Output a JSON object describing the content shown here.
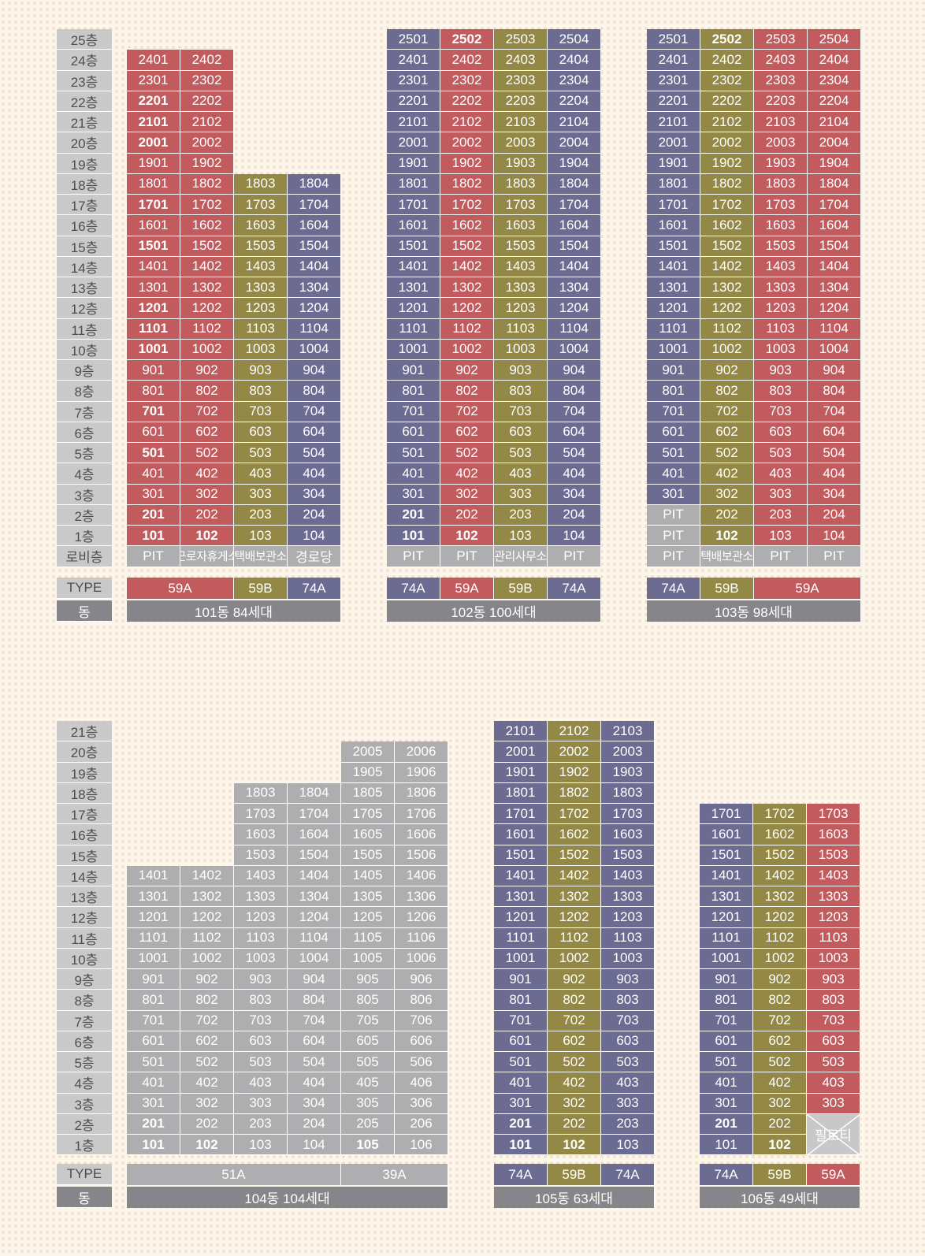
{
  "colors": {
    "red": "#c25b5e",
    "olive": "#938845",
    "blue": "#6c6c93",
    "gray": "#aeaeb1",
    "label": "#c9c9c9",
    "dark": "#86868a",
    "pilotis": "#c8c8ca"
  },
  "sectionA": {
    "floor_labels": [
      "25층",
      "24층",
      "23층",
      "22층",
      "21층",
      "20층",
      "19층",
      "18층",
      "17층",
      "16층",
      "15층",
      "14층",
      "13층",
      "12층",
      "11층",
      "10층",
      "9층",
      "8층",
      "7층",
      "6층",
      "5층",
      "4층",
      "3층",
      "2층",
      "1층",
      "로비층"
    ],
    "type_label": "TYPE",
    "dong_label": "동"
  },
  "sectionB": {
    "floor_labels": [
      "21층",
      "20층",
      "19층",
      "18층",
      "17층",
      "16층",
      "15층",
      "14층",
      "13층",
      "12층",
      "11층",
      "10층",
      "9층",
      "8층",
      "7층",
      "6층",
      "5층",
      "4층",
      "3층",
      "2층",
      "1층"
    ],
    "type_label": "TYPE",
    "dong_label": "동"
  },
  "buildings": [
    {
      "id": "101",
      "section": "A",
      "dong_label": "101동 84세대",
      "columns": [
        {
          "line": "01",
          "type": "59A",
          "color": "red",
          "top_floor": 24,
          "bold_floors": [
            1,
            2,
            5,
            7,
            10,
            11,
            12,
            15,
            17,
            20,
            21,
            22
          ]
        },
        {
          "line": "02",
          "type": "59A",
          "color": "red",
          "top_floor": 24,
          "bold_floors": [
            1
          ]
        },
        {
          "line": "03",
          "type": "59B",
          "color": "olive",
          "top_floor": 18,
          "bold_floors": []
        },
        {
          "line": "04",
          "type": "74A",
          "color": "blue",
          "top_floor": 18,
          "bold_floors": []
        }
      ],
      "lobby": [
        "PIT",
        "근로자휴게소",
        "택배보관소",
        "경로당"
      ],
      "types": [
        {
          "label": "59A",
          "span": 2,
          "color": "red"
        },
        {
          "label": "59B",
          "span": 1,
          "color": "olive"
        },
        {
          "label": "74A",
          "span": 1,
          "color": "blue"
        }
      ]
    },
    {
      "id": "102",
      "section": "A",
      "dong_label": "102동 100세대",
      "columns": [
        {
          "line": "01",
          "type": "74A",
          "color": "blue",
          "top_floor": 25,
          "bold_floors": [
            1,
            2
          ]
        },
        {
          "line": "02",
          "type": "59A",
          "color": "red",
          "top_floor": 25,
          "bold_floors": [
            1,
            25
          ]
        },
        {
          "line": "03",
          "type": "59B",
          "color": "olive",
          "top_floor": 25,
          "bold_floors": []
        },
        {
          "line": "04",
          "type": "74A",
          "color": "blue",
          "top_floor": 25,
          "bold_floors": []
        }
      ],
      "lobby": [
        "PIT",
        "PIT",
        "관리사무소",
        "PIT"
      ],
      "types": [
        {
          "label": "74A",
          "span": 1,
          "color": "blue"
        },
        {
          "label": "59A",
          "span": 1,
          "color": "red"
        },
        {
          "label": "59B",
          "span": 1,
          "color": "olive"
        },
        {
          "label": "74A",
          "span": 1,
          "color": "blue"
        }
      ]
    },
    {
      "id": "103",
      "section": "A",
      "dong_label": "103동 98세대",
      "columns": [
        {
          "line": "01",
          "type": "74A",
          "color": "blue",
          "top_floor": 25,
          "bold_floors": [],
          "pit_floors": [
            1,
            2
          ]
        },
        {
          "line": "02",
          "type": "59B",
          "color": "olive",
          "top_floor": 25,
          "bold_floors": [
            1,
            25
          ]
        },
        {
          "line": "03",
          "type": "59A",
          "color": "red",
          "top_floor": 25,
          "bold_floors": []
        },
        {
          "line": "04",
          "type": "59A",
          "color": "red",
          "top_floor": 25,
          "bold_floors": []
        }
      ],
      "pit_label": "PIT",
      "lobby": [
        "PIT",
        "택배보관소",
        "PIT",
        "PIT"
      ],
      "types": [
        {
          "label": "74A",
          "span": 1,
          "color": "blue"
        },
        {
          "label": "59B",
          "span": 1,
          "color": "olive"
        },
        {
          "label": "59A",
          "span": 2,
          "color": "red"
        }
      ]
    },
    {
      "id": "104",
      "section": "B",
      "dong_label": "104동 104세대",
      "columns": [
        {
          "line": "01",
          "type": "51A",
          "color": "gray",
          "top_floor": 14,
          "bold_floors": [
            1,
            2
          ]
        },
        {
          "line": "02",
          "type": "51A",
          "color": "gray",
          "top_floor": 14,
          "bold_floors": [
            1
          ]
        },
        {
          "line": "03",
          "type": "51A",
          "color": "gray",
          "top_floor": 18,
          "bold_floors": []
        },
        {
          "line": "04",
          "type": "51A",
          "color": "gray",
          "top_floor": 18,
          "bold_floors": []
        },
        {
          "line": "05",
          "type": "39A",
          "color": "gray",
          "top_floor": 20,
          "bold_floors": [
            1
          ]
        },
        {
          "line": "06",
          "type": "39A",
          "color": "gray",
          "top_floor": 20,
          "bold_floors": []
        }
      ],
      "types": [
        {
          "label": "51A",
          "span": 4,
          "color": "gray"
        },
        {
          "label": "39A",
          "span": 2,
          "color": "gray"
        }
      ]
    },
    {
      "id": "105",
      "section": "B",
      "dong_label": "105동 63세대",
      "columns": [
        {
          "line": "01",
          "type": "74A",
          "color": "blue",
          "top_floor": 21,
          "bold_floors": [
            1,
            2
          ]
        },
        {
          "line": "02",
          "type": "59B",
          "color": "olive",
          "top_floor": 21,
          "bold_floors": [
            1
          ]
        },
        {
          "line": "03",
          "type": "74A",
          "color": "blue",
          "top_floor": 21,
          "bold_floors": []
        }
      ],
      "types": [
        {
          "label": "74A",
          "span": 1,
          "color": "blue"
        },
        {
          "label": "59B",
          "span": 1,
          "color": "olive"
        },
        {
          "label": "74A",
          "span": 1,
          "color": "blue"
        }
      ]
    },
    {
      "id": "106",
      "section": "B",
      "dong_label": "106동 49세대",
      "columns": [
        {
          "line": "01",
          "type": "74A",
          "color": "blue",
          "top_floor": 17,
          "bold_floors": [
            2
          ]
        },
        {
          "line": "02",
          "type": "59B",
          "color": "olive",
          "top_floor": 17,
          "bold_floors": [
            1
          ]
        },
        {
          "line": "03",
          "type": "59A",
          "color": "red",
          "top_floor": 17,
          "bold_floors": [],
          "pilotis": {
            "floors": [
              1,
              2
            ],
            "label": "필로티"
          }
        }
      ],
      "types": [
        {
          "label": "74A",
          "span": 1,
          "color": "blue"
        },
        {
          "label": "59B",
          "span": 1,
          "color": "olive"
        },
        {
          "label": "59A",
          "span": 1,
          "color": "red"
        }
      ]
    }
  ]
}
